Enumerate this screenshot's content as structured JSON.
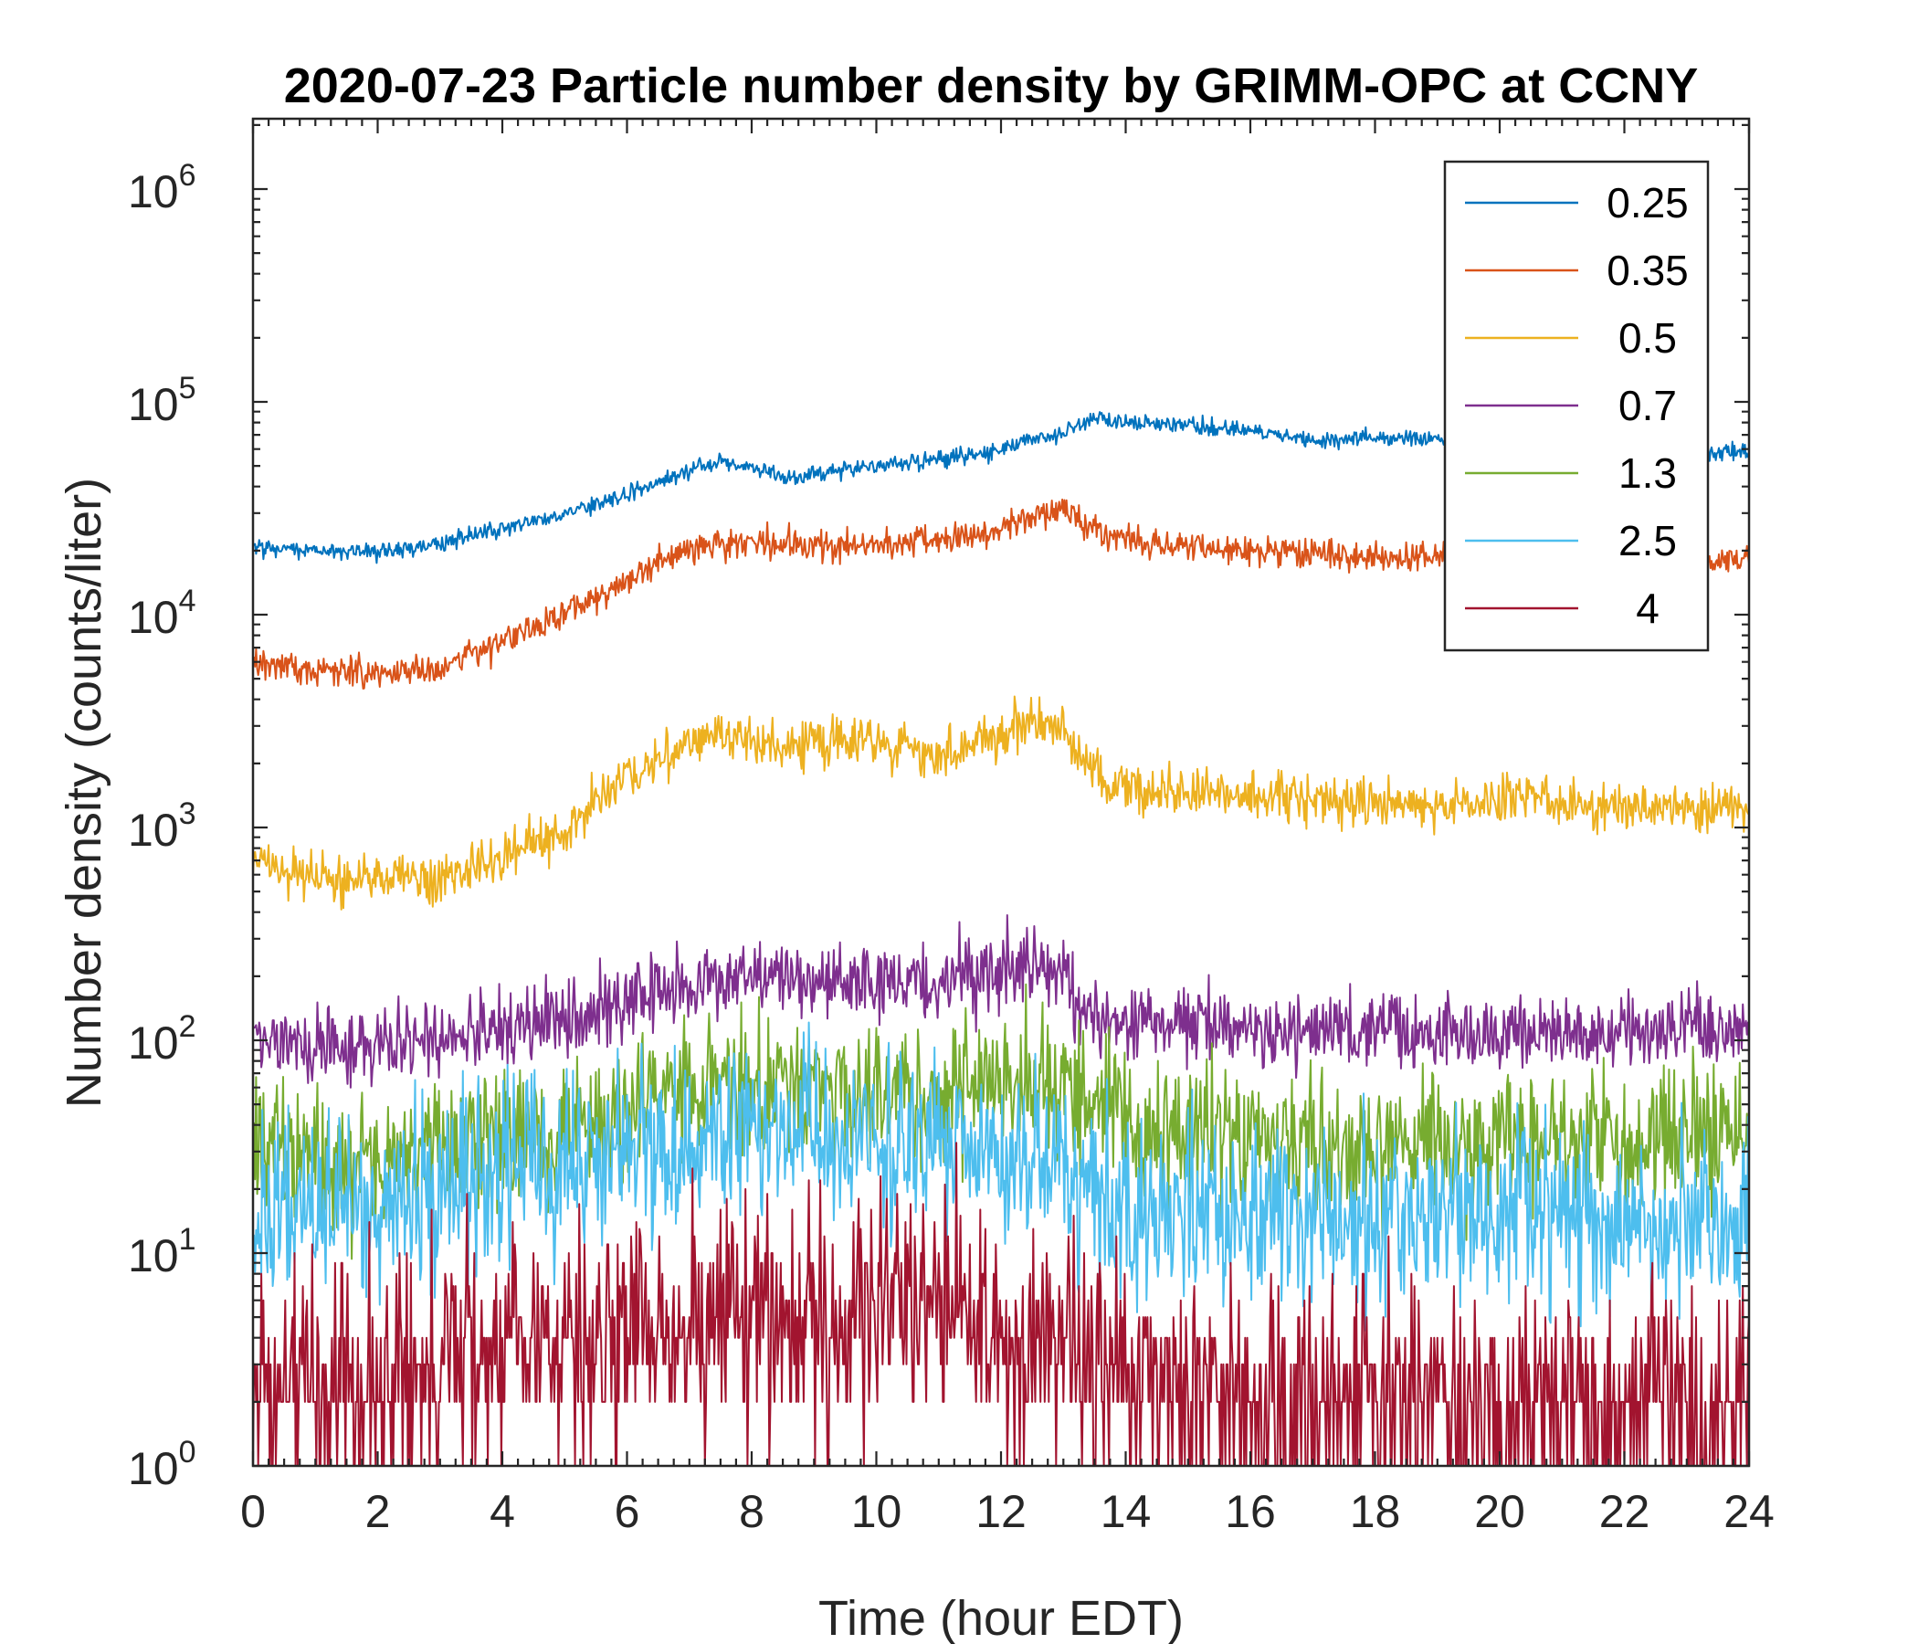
{
  "chart_data": {
    "type": "line",
    "title": "2020-07-23 Particle number density by GRIMM-OPC at CCNY",
    "xlabel": "Time (hour EDT)",
    "ylabel": "Number density (counts/liter)",
    "xlim": [
      0,
      24
    ],
    "ylim": [
      1,
      2000000
    ],
    "yscale": "log",
    "x_ticks": [
      0,
      2,
      4,
      6,
      8,
      10,
      12,
      14,
      16,
      18,
      20,
      22,
      24
    ],
    "x_tick_labels": [
      "0",
      "2",
      "4",
      "6",
      "8",
      "10",
      "12",
      "14",
      "16",
      "18",
      "20",
      "22",
      "24"
    ],
    "y_ticks": [
      {
        "value": 1,
        "base": "10",
        "exp": "0"
      },
      {
        "value": 10,
        "base": "10",
        "exp": "1"
      },
      {
        "value": 100,
        "base": "10",
        "exp": "2"
      },
      {
        "value": 1000,
        "base": "10",
        "exp": "3"
      },
      {
        "value": 10000,
        "base": "10",
        "exp": "4"
      },
      {
        "value": 100000,
        "base": "10",
        "exp": "5"
      },
      {
        "value": 1000000,
        "base": "10",
        "exp": "6"
      }
    ],
    "legend_position": "top-right",
    "series": [
      {
        "name": "0.25",
        "color": "#0072BD",
        "noise": 0.02,
        "x": [
          0,
          1,
          2,
          3,
          4,
          5,
          6,
          7,
          7.5,
          8,
          8.6,
          9,
          10,
          11,
          12,
          13,
          13.5,
          14,
          15,
          16,
          17,
          18,
          19,
          20,
          21,
          22,
          23,
          24
        ],
        "y": [
          21000,
          20000,
          19500,
          21500,
          25500,
          30000,
          37000,
          48000,
          52000,
          49000,
          43000,
          46000,
          50000,
          54000,
          60000,
          72000,
          83000,
          80000,
          77000,
          73000,
          66000,
          68000,
          66000,
          61000,
          62000,
          56000,
          57000,
          58000
        ]
      },
      {
        "name": "0.35",
        "color": "#D95319",
        "noise": 0.035,
        "x": [
          0,
          1,
          2,
          3,
          4,
          5,
          6,
          6.5,
          7,
          8,
          9,
          10,
          11,
          12,
          12.5,
          13,
          13.4,
          14,
          15,
          16,
          17,
          18,
          19,
          20,
          21,
          22,
          23,
          24
        ],
        "y": [
          5800,
          5500,
          5300,
          5700,
          7500,
          10000,
          14000,
          18000,
          20500,
          22000,
          21000,
          21500,
          22000,
          25000,
          29000,
          31000,
          26000,
          22500,
          21000,
          20000,
          19000,
          18500,
          18700,
          18000,
          18200,
          17800,
          18000,
          18200
        ]
      },
      {
        "name": "0.5",
        "color": "#EDB120",
        "noise": 0.06,
        "x": [
          0,
          1,
          2,
          3,
          4,
          5,
          5.7,
          6.5,
          7,
          7.5,
          8,
          8.5,
          9,
          10,
          11,
          12,
          12.5,
          13,
          13.4,
          14,
          15,
          16,
          17,
          18,
          19,
          20,
          20.5,
          21,
          22,
          23,
          24
        ],
        "y": [
          680,
          580,
          580,
          580,
          720,
          950,
          1500,
          2100,
          2400,
          2700,
          2600,
          2400,
          2500,
          2500,
          2100,
          2700,
          3200,
          3000,
          1800,
          1500,
          1450,
          1450,
          1350,
          1300,
          1250,
          1300,
          1450,
          1250,
          1250,
          1250,
          1300
        ]
      },
      {
        "name": "0.7",
        "color": "#7E2F8E",
        "noise": 0.09,
        "x": [
          0,
          1,
          2,
          3,
          4,
          5,
          6,
          7,
          8,
          9,
          10,
          11,
          12,
          12.5,
          13,
          13.3,
          14,
          15,
          16,
          17,
          18,
          19,
          20,
          21,
          22,
          23,
          24
        ],
        "y": [
          100,
          95,
          95,
          100,
          110,
          125,
          150,
          180,
          200,
          190,
          185,
          195,
          210,
          220,
          210,
          130,
          120,
          120,
          115,
          110,
          110,
          110,
          110,
          110,
          110,
          115,
          110
        ]
      },
      {
        "name": "1.3",
        "color": "#77AC30",
        "noise": 0.17,
        "x": [
          0,
          1,
          2,
          3,
          4,
          5,
          6,
          7,
          8,
          9,
          10,
          11,
          12,
          12.5,
          13,
          14,
          15,
          16,
          17,
          18,
          19,
          20,
          21,
          22,
          23,
          24
        ],
        "y": [
          30,
          26,
          28,
          32,
          35,
          38,
          45,
          55,
          62,
          58,
          55,
          58,
          62,
          65,
          60,
          42,
          38,
          35,
          33,
          32,
          33,
          34,
          32,
          33,
          35,
          34
        ]
      },
      {
        "name": "2.5",
        "color": "#4DBEEE",
        "noise": 0.21,
        "x": [
          0,
          1,
          2,
          3,
          4,
          5,
          6,
          7,
          8,
          9,
          10,
          11,
          12,
          13,
          14,
          15,
          16,
          17,
          18,
          19,
          20,
          21,
          22,
          23,
          24
        ],
        "y": [
          15,
          15,
          17,
          21,
          24,
          27,
          30,
          34,
          37,
          35,
          33,
          35,
          30,
          24,
          17,
          15,
          15,
          14,
          14,
          14,
          15,
          14,
          15,
          16,
          15
        ]
      },
      {
        "name": "4",
        "color": "#A2142F",
        "noise": 0.28,
        "x": [
          0,
          1,
          2,
          3,
          4,
          5,
          6,
          7,
          8,
          9,
          10,
          10.5,
          11,
          12,
          13,
          14,
          15,
          16,
          17,
          18,
          19,
          20,
          21,
          22,
          23,
          24
        ],
        "y": [
          2,
          2.2,
          2.5,
          3,
          3.3,
          3.5,
          4,
          4.5,
          5,
          5,
          5.5,
          6,
          5.5,
          4.5,
          3,
          2.5,
          2.3,
          2.2,
          2.1,
          2,
          2,
          2,
          2,
          2,
          2,
          2
        ]
      }
    ]
  }
}
